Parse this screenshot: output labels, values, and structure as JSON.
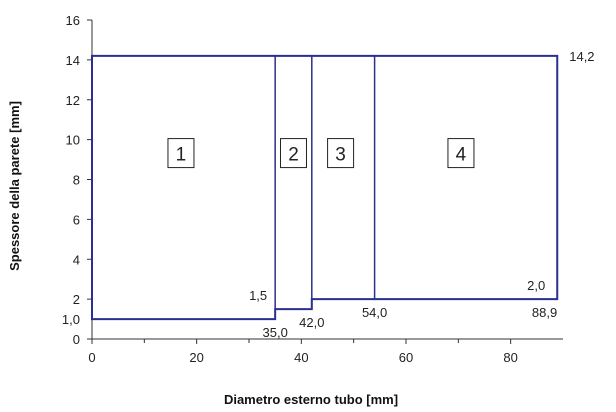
{
  "chart_data": {
    "type": "line",
    "xlabel": "Diametro esterno tubo [mm]",
    "ylabel": "Spessore della parete [mm]",
    "xlim": [
      0,
      90
    ],
    "ylim": [
      0,
      16
    ],
    "x_ticks": [
      "0",
      "20",
      "40",
      "60",
      "80"
    ],
    "y_ticks": [
      "0",
      "2",
      "4",
      "6",
      "8",
      "10",
      "12",
      "14",
      "16"
    ],
    "grid": false,
    "series_color": "#2b2f8f",
    "series": [
      {
        "x": [
          0,
          35,
          35,
          42,
          42,
          88.9,
          88.9,
          0
        ],
        "y": [
          1.0,
          1.0,
          1.5,
          1.5,
          2.0,
          2.0,
          14.2,
          14.2
        ]
      }
    ],
    "dividers": [
      {
        "x": 35,
        "y": [
          1.5,
          14.2
        ]
      },
      {
        "x": 42,
        "y": [
          1.5,
          14.2
        ]
      },
      {
        "x": 54,
        "y": [
          2.0,
          14.2
        ]
      }
    ],
    "regions": [
      {
        "label": "1",
        "x": 17,
        "y": 9.3
      },
      {
        "label": "2",
        "x": 38.5,
        "y": 9.3
      },
      {
        "label": "3",
        "x": 47.5,
        "y": 9.3
      },
      {
        "label": "4",
        "x": 70.5,
        "y": 9.3
      }
    ],
    "annotations": [
      {
        "text": "1,0",
        "x": 0,
        "y": 1.0,
        "anchor": "end",
        "dx": -12,
        "dy": 5
      },
      {
        "text": "1,5",
        "x": 35,
        "y": 1.5,
        "anchor": "end",
        "dx": -8,
        "dy": -9
      },
      {
        "text": "35,0",
        "x": 35,
        "y": 1.0,
        "anchor": "middle",
        "dx": 0,
        "dy": 18
      },
      {
        "text": "42,0",
        "x": 42,
        "y": 1.5,
        "anchor": "middle",
        "dx": 0,
        "dy": 18
      },
      {
        "text": "54,0",
        "x": 54,
        "y": 2.0,
        "anchor": "middle",
        "dx": 0,
        "dy": 18
      },
      {
        "text": "2,0",
        "x": 88.9,
        "y": 2.0,
        "anchor": "end",
        "dx": -12,
        "dy": -9
      },
      {
        "text": "88,9",
        "x": 88.9,
        "y": 2.0,
        "anchor": "end",
        "dx": 0,
        "dy": 18
      },
      {
        "text": "14,2",
        "x": 88.9,
        "y": 14.2,
        "anchor": "start",
        "dx": 12,
        "dy": 5
      }
    ]
  }
}
